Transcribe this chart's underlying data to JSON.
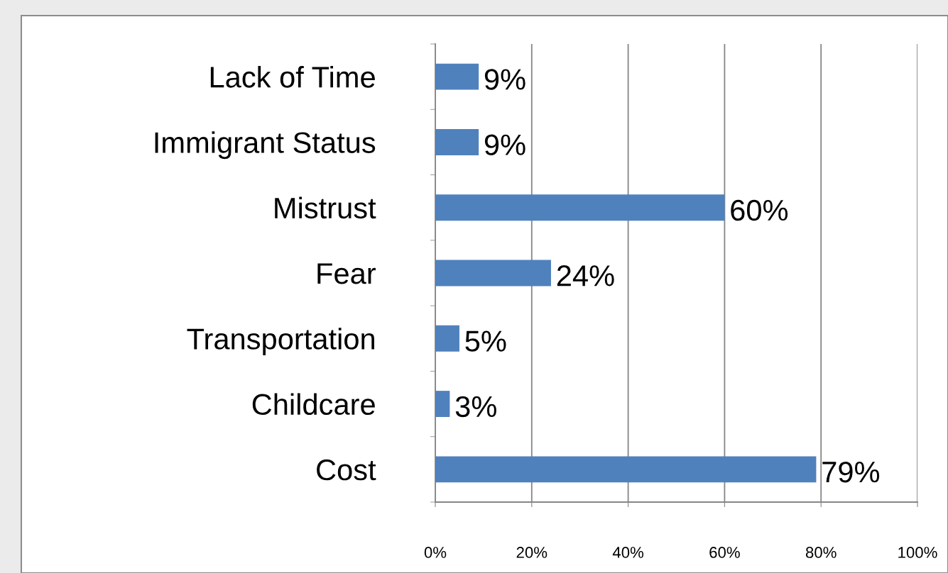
{
  "chart_data": {
    "type": "bar",
    "orientation": "horizontal",
    "categories": [
      "Lack of Time",
      "Immigrant Status",
      "Mistrust",
      "Fear",
      "Transportation",
      "Childcare",
      "Cost"
    ],
    "values": [
      9,
      9,
      60,
      24,
      5,
      3,
      79
    ],
    "value_labels": [
      "9%",
      "9%",
      "60%",
      "24%",
      "5%",
      "3%",
      "79%"
    ],
    "color": "#4f81bd",
    "xlim": [
      0,
      100
    ],
    "xticks": [
      {
        "value": 0,
        "label": "0%"
      },
      {
        "value": 20,
        "label": "20%"
      },
      {
        "value": 40,
        "label": "40%"
      },
      {
        "value": 60,
        "label": "60%"
      },
      {
        "value": 80,
        "label": "80%"
      },
      {
        "value": 100,
        "label": "100%"
      }
    ],
    "grid": "x",
    "legend": false
  }
}
